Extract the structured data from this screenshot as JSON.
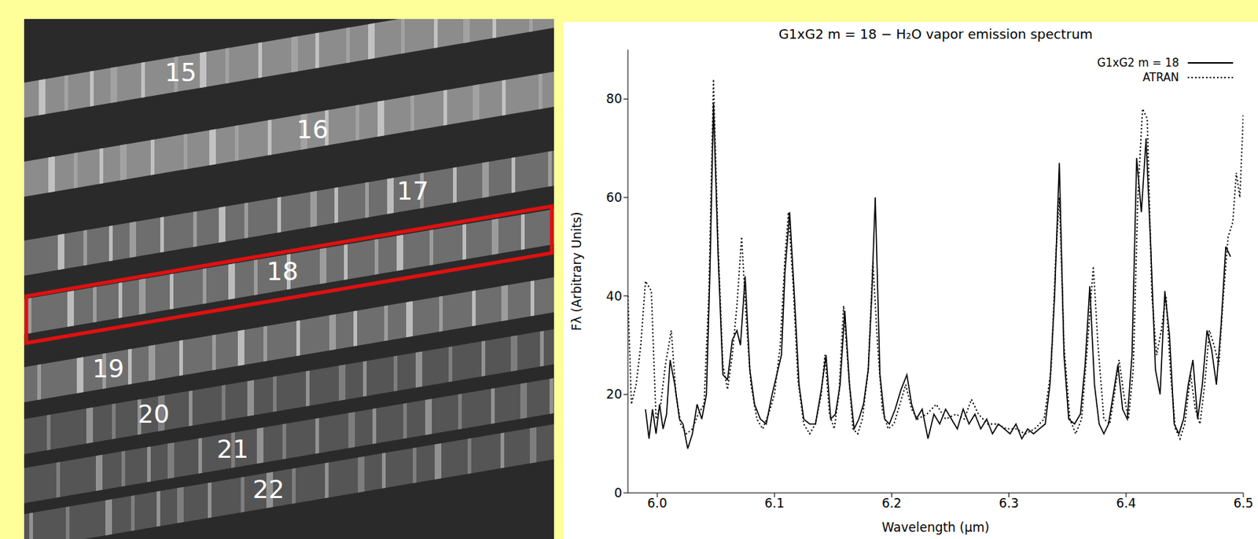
{
  "chart_data": {
    "type": "line",
    "title": "G1xG2 m = 18 − H₂O vapor emission spectrum",
    "x_label": "Wavelength (μm)",
    "y_label": "Fλ (Arbitrary Units)",
    "xlim": [
      5.975,
      6.5
    ],
    "xticks": [
      {
        "value": 6,
        "label": "6.0"
      },
      6.1,
      6.2,
      6.3,
      6.4,
      6.5
    ],
    "ylim": [
      0,
      90
    ],
    "yticks": [
      0,
      20,
      40,
      60,
      80
    ],
    "grid": false,
    "legend": "upper right",
    "series": [
      {
        "name": "G1xG2 m = 18",
        "color": "#000000",
        "line_style": "solid",
        "x": [
          5.99,
          5.993,
          5.996,
          5.999,
          6.002,
          6.005,
          6.008,
          6.011,
          6.015,
          6.019,
          6.022,
          6.026,
          6.03,
          6.034,
          6.038,
          6.042,
          6.045,
          6.048,
          6.052,
          6.056,
          6.06,
          6.064,
          6.068,
          6.071,
          6.075,
          6.079,
          6.083,
          6.088,
          6.093,
          6.098,
          6.102,
          6.106,
          6.109,
          6.113,
          6.117,
          6.121,
          6.125,
          6.13,
          6.135,
          6.14,
          6.144,
          6.148,
          6.152,
          6.156,
          6.16,
          6.164,
          6.168,
          6.172,
          6.176,
          6.18,
          6.183,
          6.186,
          6.19,
          6.194,
          6.198,
          6.203,
          6.208,
          6.213,
          6.217,
          6.221,
          6.226,
          6.231,
          6.236,
          6.241,
          6.246,
          6.251,
          6.256,
          6.261,
          6.266,
          6.271,
          6.276,
          6.281,
          6.286,
          6.291,
          6.296,
          6.301,
          6.306,
          6.311,
          6.316,
          6.321,
          6.326,
          6.331,
          6.335,
          6.339,
          6.343,
          6.347,
          6.351,
          6.356,
          6.361,
          6.365,
          6.369,
          6.373,
          6.377,
          6.381,
          6.385,
          6.389,
          6.393,
          6.397,
          6.401,
          6.405,
          6.409,
          6.413,
          6.417,
          6.421,
          6.425,
          6.429,
          6.433,
          6.437,
          6.441,
          6.445,
          6.449,
          6.453,
          6.457,
          6.461,
          6.465,
          6.469,
          6.473,
          6.477,
          6.481,
          6.485,
          6.489
        ],
        "values": [
          17,
          11,
          17,
          12,
          18,
          13,
          16,
          27,
          22,
          15,
          14,
          9,
          12,
          18,
          15,
          20,
          45,
          79,
          48,
          24,
          23,
          31,
          33,
          30,
          44,
          25,
          18,
          15,
          14,
          20,
          24,
          28,
          45,
          57,
          40,
          22,
          15,
          14,
          14,
          21,
          28,
          15,
          16,
          22,
          37,
          22,
          13,
          15,
          18,
          25,
          40,
          60,
          24,
          15,
          14,
          17,
          21,
          24,
          18,
          15,
          17,
          11,
          16,
          14,
          17,
          15,
          13,
          17,
          14,
          16,
          13,
          15,
          12,
          14,
          13,
          12,
          14,
          11,
          13,
          12,
          13,
          14,
          22,
          40,
          67,
          28,
          15,
          14,
          16,
          26,
          42,
          22,
          14,
          12,
          14,
          20,
          26,
          17,
          15,
          28,
          68,
          57,
          72,
          50,
          25,
          20,
          41,
          32,
          14,
          12,
          15,
          22,
          27,
          15,
          22,
          33,
          29,
          22,
          34,
          50,
          48
        ]
      },
      {
        "name": "ATRAN",
        "color": "#000000",
        "line_style": "dotted",
        "x": [
          5.975,
          5.978,
          5.982,
          5.986,
          5.99,
          5.995,
          5.999,
          6.003,
          6.007,
          6.012,
          6.016,
          6.02,
          6.025,
          6.03,
          6.035,
          6.04,
          6.044,
          6.048,
          6.052,
          6.056,
          6.06,
          6.064,
          6.068,
          6.072,
          6.076,
          6.08,
          6.085,
          6.09,
          6.095,
          6.1,
          6.105,
          6.109,
          6.112,
          6.116,
          6.12,
          6.125,
          6.13,
          6.135,
          6.14,
          6.143,
          6.147,
          6.151,
          6.155,
          6.159,
          6.163,
          6.167,
          6.171,
          6.175,
          6.18,
          6.184,
          6.188,
          6.192,
          6.197,
          6.202,
          6.207,
          6.212,
          6.217,
          6.222,
          6.23,
          6.238,
          6.246,
          6.255,
          6.262,
          6.268,
          6.274,
          6.282,
          6.29,
          6.298,
          6.306,
          6.314,
          6.322,
          6.33,
          6.336,
          6.34,
          6.343,
          6.347,
          6.352,
          6.357,
          6.362,
          6.367,
          6.372,
          6.376,
          6.381,
          6.386,
          6.39,
          6.394,
          6.398,
          6.402,
          6.406,
          6.41,
          6.414,
          6.418,
          6.422,
          6.426,
          6.43,
          6.434,
          6.438,
          6.442,
          6.446,
          6.45,
          6.455,
          6.459,
          6.463,
          6.467,
          6.471,
          6.475,
          6.479,
          6.483,
          6.487,
          6.491,
          6.494,
          6.497,
          6.5
        ],
        "values": [
          40,
          18,
          22,
          30,
          43,
          41,
          15,
          18,
          26,
          33,
          20,
          14,
          12,
          13,
          16,
          18,
          40,
          84,
          50,
          26,
          21,
          28,
          38,
          52,
          35,
          22,
          15,
          13,
          16,
          20,
          30,
          48,
          57,
          42,
          23,
          14,
          12,
          14,
          20,
          28,
          16,
          13,
          20,
          38,
          25,
          13,
          12,
          15,
          25,
          47,
          30,
          17,
          13,
          14,
          18,
          22,
          17,
          15,
          16,
          18,
          15,
          16,
          15,
          19,
          16,
          14,
          14,
          13,
          13,
          12,
          13,
          15,
          25,
          48,
          60,
          30,
          15,
          12,
          15,
          30,
          46,
          30,
          15,
          14,
          20,
          27,
          20,
          15,
          25,
          60,
          78,
          76,
          40,
          28,
          33,
          40,
          24,
          13,
          11,
          14,
          24,
          17,
          14,
          22,
          33,
          30,
          26,
          40,
          52,
          55,
          65,
          60,
          77
        ]
      }
    ]
  },
  "image_panel": {
    "orders": [
      15,
      16,
      17,
      18,
      19,
      20,
      21,
      22
    ],
    "highlighted_order": 18
  }
}
